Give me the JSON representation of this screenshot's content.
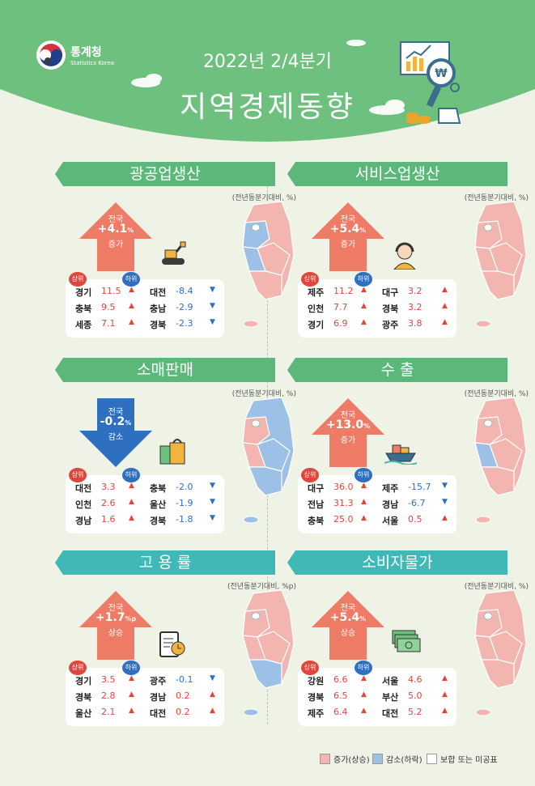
{
  "header": {
    "org_ko": "통계청",
    "org_en": "Statistics Korea",
    "subtitle": "2022년 2/4분기",
    "title": "지역경제동향"
  },
  "colors": {
    "header_green": "#6ec07e",
    "panel_green": "#5cb87a",
    "panel_teal": "#3fb8b6",
    "up_arrow": "#ee7b66",
    "down_arrow": "#2f6fbf",
    "increase": "#f3b5b0",
    "decrease": "#9cc0e6",
    "same": "#ffffff",
    "up_text": "#e0463b",
    "down_text": "#2f6fbf"
  },
  "panels": [
    {
      "title": "광공업생산",
      "unit": "(전년동분기대비, %)",
      "nat_label": "전국",
      "nat_value": "+4.1",
      "nat_unit": "%",
      "nat_change": "증가",
      "direction": "up",
      "icon": "excavator-icon",
      "top_label": "상위",
      "bottom_label": "하위",
      "top": [
        {
          "region": "경기",
          "value": "11.5"
        },
        {
          "region": "충북",
          "value": "9.5"
        },
        {
          "region": "세종",
          "value": "7.1"
        }
      ],
      "bottom": [
        {
          "region": "대전",
          "value": "-8.4"
        },
        {
          "region": "충남",
          "value": "-2.9"
        },
        {
          "region": "경북",
          "value": "-2.3"
        }
      ]
    },
    {
      "title": "서비스업생산",
      "unit": "(전년동분기대비, %)",
      "nat_label": "전국",
      "nat_value": "+5.4",
      "nat_unit": "%",
      "nat_change": "증가",
      "direction": "up",
      "icon": "headset-person-icon",
      "top_label": "상위",
      "bottom_label": "하위",
      "top": [
        {
          "region": "제주",
          "value": "11.2"
        },
        {
          "region": "인천",
          "value": "7.7"
        },
        {
          "region": "경기",
          "value": "6.9"
        }
      ],
      "bottom": [
        {
          "region": "대구",
          "value": "3.2"
        },
        {
          "region": "경북",
          "value": "3.2"
        },
        {
          "region": "광주",
          "value": "3.8"
        }
      ]
    },
    {
      "title": "소매판매",
      "unit": "(전년동분기대비, %)",
      "nat_label": "전국",
      "nat_value": "-0.2",
      "nat_unit": "%",
      "nat_change": "감소",
      "direction": "down",
      "icon": "shopping-bag-icon",
      "top_label": "상위",
      "bottom_label": "하위",
      "top": [
        {
          "region": "대전",
          "value": "3.3"
        },
        {
          "region": "인천",
          "value": "2.6"
        },
        {
          "region": "경남",
          "value": "1.6"
        }
      ],
      "bottom": [
        {
          "region": "충북",
          "value": "-2.0"
        },
        {
          "region": "울산",
          "value": "-1.9"
        },
        {
          "region": "경북",
          "value": "-1.8"
        }
      ]
    },
    {
      "title": "수      출",
      "unit": "(전년동분기대비, %)",
      "nat_label": "전국",
      "nat_value": "+13.0",
      "nat_unit": "%",
      "nat_change": "증가",
      "direction": "up",
      "icon": "ship-icon",
      "top_label": "상위",
      "bottom_label": "하위",
      "top": [
        {
          "region": "대구",
          "value": "36.0"
        },
        {
          "region": "전남",
          "value": "31.3"
        },
        {
          "region": "충북",
          "value": "25.0"
        }
      ],
      "bottom": [
        {
          "region": "제주",
          "value": "-15.7"
        },
        {
          "region": "경남",
          "value": "-6.7"
        },
        {
          "region": "서울",
          "value": "0.5"
        }
      ]
    },
    {
      "title": "고  용  률",
      "unit": "(전년동분기대비, %p)",
      "nat_label": "전국",
      "nat_value": "+1.7",
      "nat_unit": "%p",
      "nat_change": "상승",
      "direction": "up",
      "icon": "clipboard-clock-icon",
      "top_label": "상위",
      "bottom_label": "하위",
      "top": [
        {
          "region": "경기",
          "value": "3.5"
        },
        {
          "region": "경북",
          "value": "2.8"
        },
        {
          "region": "울산",
          "value": "2.1"
        }
      ],
      "bottom": [
        {
          "region": "광주",
          "value": "-0.1"
        },
        {
          "region": "경남",
          "value": "0.2"
        },
        {
          "region": "대전",
          "value": "0.2"
        }
      ]
    },
    {
      "title": "소비자물가",
      "unit": "(전년동분기대비, %)",
      "nat_label": "전국",
      "nat_value": "+5.4",
      "nat_unit": "%",
      "nat_change": "상승",
      "direction": "up",
      "icon": "money-bills-icon",
      "top_label": "상위",
      "bottom_label": "하위",
      "top": [
        {
          "region": "강원",
          "value": "6.6"
        },
        {
          "region": "경북",
          "value": "6.5"
        },
        {
          "region": "제주",
          "value": "6.4"
        }
      ],
      "bottom": [
        {
          "region": "서울",
          "value": "4.6"
        },
        {
          "region": "부산",
          "value": "5.0"
        },
        {
          "region": "대전",
          "value": "5.2"
        }
      ]
    }
  ],
  "legend": {
    "increase": "증가(상승)",
    "decrease": "감소(하락)",
    "same": "보합 또는 미공표"
  }
}
